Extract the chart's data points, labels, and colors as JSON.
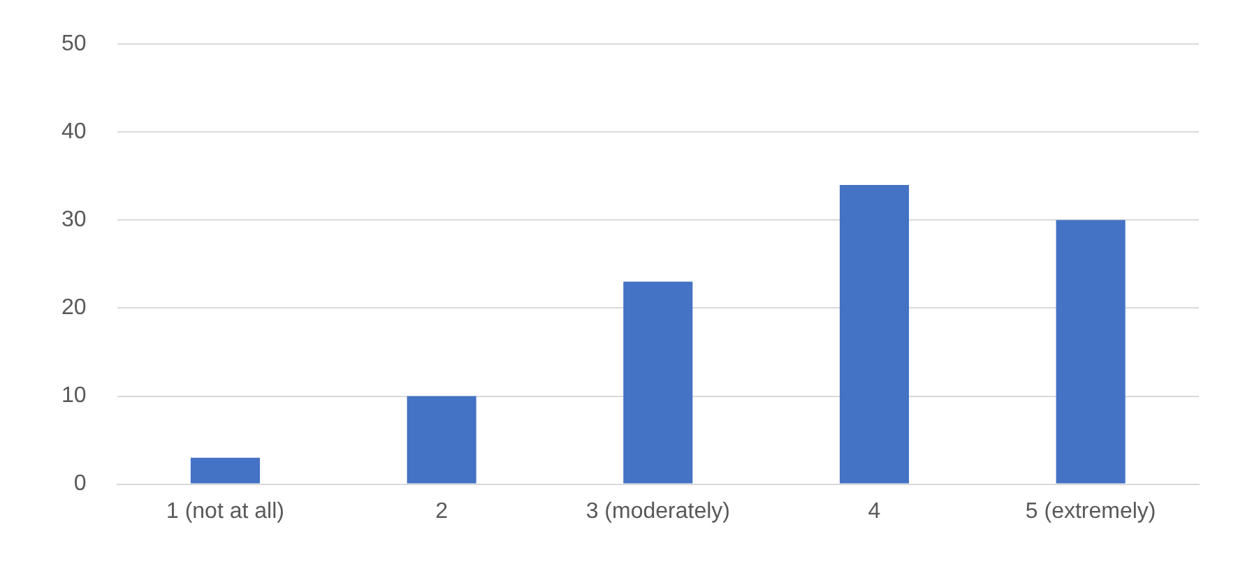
{
  "chart_data": {
    "type": "bar",
    "categories": [
      "1 (not at all)",
      "2",
      "3 (moderately)",
      "4",
      "5 (extremely)"
    ],
    "values": [
      3,
      10,
      23,
      34,
      30
    ],
    "color": "#4472c4",
    "ylim": [
      0,
      50
    ],
    "yticks": [
      0,
      10,
      20,
      30,
      40,
      50
    ],
    "grid": "y",
    "legend": false
  }
}
